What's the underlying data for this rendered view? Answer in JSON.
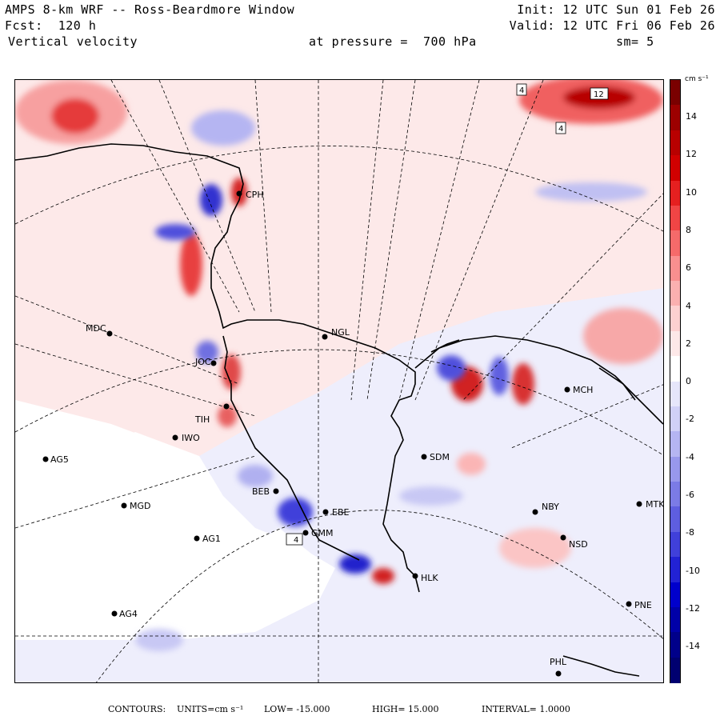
{
  "header": {
    "title": "AMPS 8-km WRF -- Ross-Beardmore Window",
    "forecast": "Fcst:  120 h",
    "field": "Vertical velocity",
    "level": "at pressure =  700 hPa",
    "init": "Init: 12 UTC Sun 01 Feb 26",
    "valid": "Valid: 12 UTC Fri 06 Feb 26",
    "smoothing": "sm= 5"
  },
  "colorbar": {
    "units": "cm s⁻¹",
    "ticks": [
      "14",
      "12",
      "10",
      "8",
      "6",
      "4",
      "2",
      "0",
      "-2",
      "-4",
      "-6",
      "-8",
      "-10",
      "-12",
      "-14"
    ],
    "colors": [
      "#7a0000",
      "#9c0000",
      "#b80000",
      "#d10000",
      "#e52020",
      "#f04545",
      "#f56a6a",
      "#f98f8f",
      "#fbb0b0",
      "#fdd0d0",
      "#fde8e8",
      "#ffffff",
      "#e6e6fb",
      "#d0d0f7",
      "#b5b5f2",
      "#9898ec",
      "#7b7be6",
      "#5e5ee0",
      "#4040da",
      "#2222d4",
      "#0000cc",
      "#0000a8",
      "#00008a",
      "#000070"
    ]
  },
  "stations": [
    {
      "id": "CPH"
    },
    {
      "id": "NGL"
    },
    {
      "id": "MDC"
    },
    {
      "id": "JOC"
    },
    {
      "id": "MCH"
    },
    {
      "id": "IWO"
    },
    {
      "id": "AG5"
    },
    {
      "id": "SDM"
    },
    {
      "id": "BEB"
    },
    {
      "id": "MGD"
    },
    {
      "id": "EBE"
    },
    {
      "id": "GMM"
    },
    {
      "id": "NBY"
    },
    {
      "id": "MTK"
    },
    {
      "id": "AG1"
    },
    {
      "id": "NSD"
    },
    {
      "id": "HLK"
    },
    {
      "id": "AG4"
    },
    {
      "id": "PNE"
    },
    {
      "id": "PHL"
    },
    {
      "id": "TIH"
    }
  ],
  "contour_labels": [
    "4",
    "12",
    "4",
    "4"
  ],
  "footer": {
    "contours_label": "CONTOURS:",
    "units_label": "UNITS=cm s⁻¹",
    "low": "LOW= -15.000",
    "high": "HIGH=  15.000",
    "interval": "INTERVAL=   1.0000"
  }
}
